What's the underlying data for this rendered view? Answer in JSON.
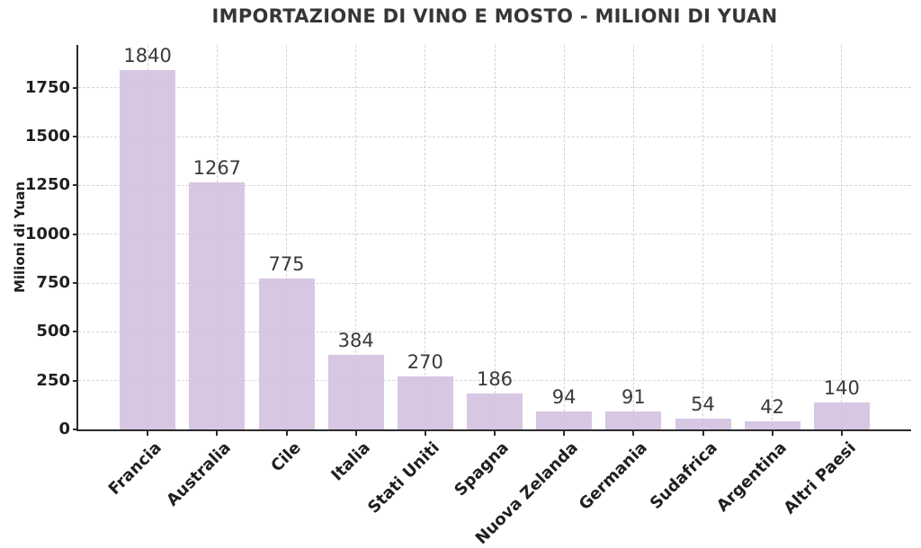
{
  "chart_data": {
    "type": "bar",
    "title": "IMPORTAZIONE DI VINO E MOSTO - MILIONI DI YUAN",
    "xlabel": "",
    "ylabel": "Milioni di Yuan",
    "categories": [
      "Francia",
      "Australia",
      "Cile",
      "Italia",
      "Stati Uniti",
      "Spagna",
      "Nuova Zelanda",
      "Germania",
      "Sudafrica",
      "Argentina",
      "Altri Paesi"
    ],
    "values": [
      1840,
      1267,
      775,
      384,
      270,
      186,
      94,
      91,
      54,
      42,
      140
    ],
    "bar_value_labels": [
      "1840",
      "1267",
      "775",
      "384",
      "270",
      "186",
      "94",
      "91",
      "54",
      "42",
      "140"
    ],
    "yticks": [
      0,
      250,
      500,
      750,
      1000,
      1250,
      1500,
      1750
    ],
    "ylim": [
      0,
      1970
    ],
    "grid": "dashed horizontal and vertical",
    "legend": "none",
    "x_tick_rotation_deg": 45,
    "colors": {
      "bar_fill": "#d3c1e0",
      "bar_opacity": "0.9",
      "grid": "#d4d4d4",
      "axis": "#2b2b2b",
      "tick_label": "#1f1f1f",
      "value_label": "#3a3a3a",
      "title": "#363636"
    }
  }
}
